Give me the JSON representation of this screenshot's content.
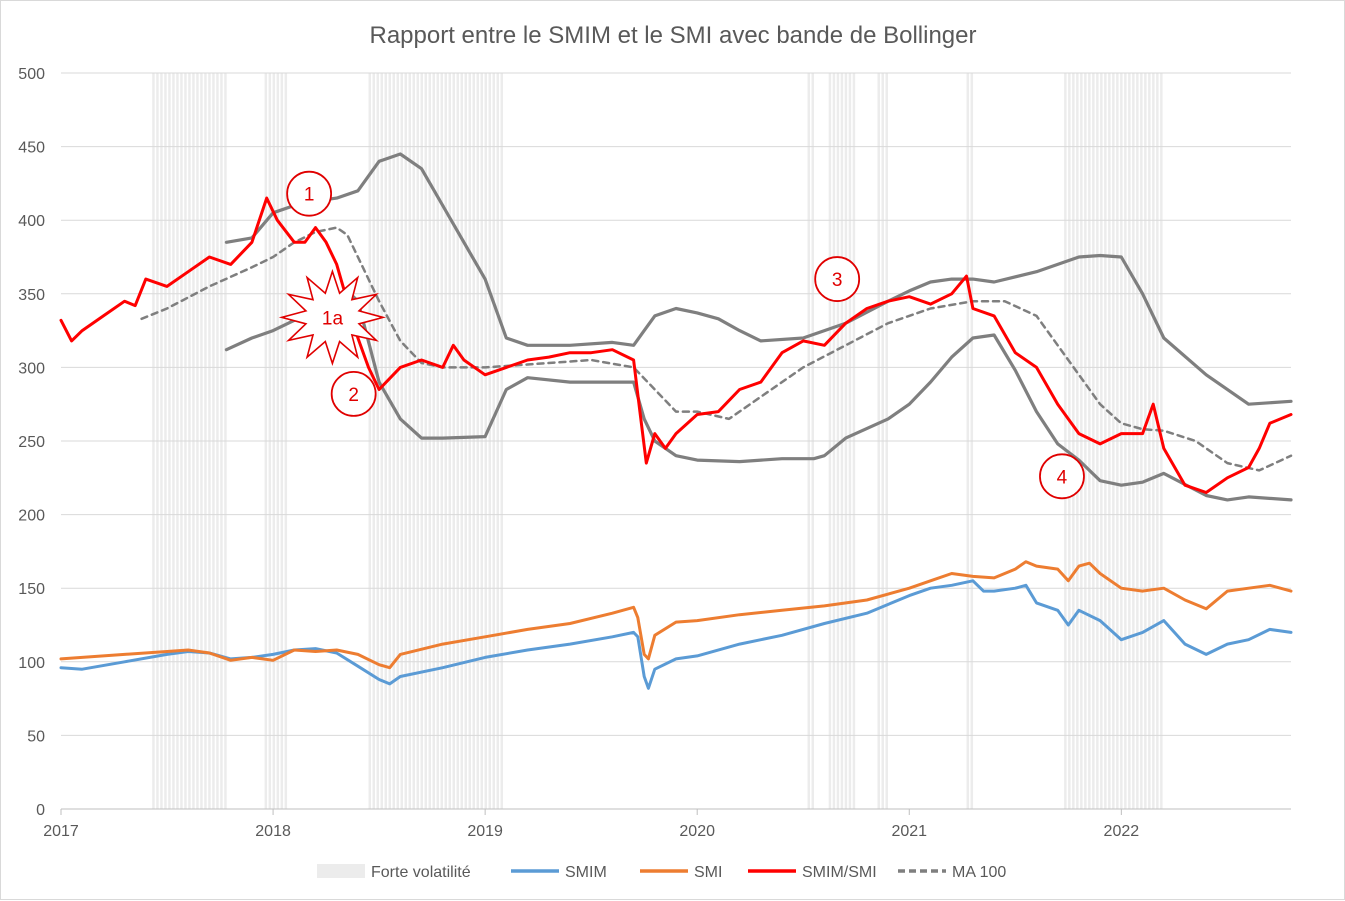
{
  "chart_data": {
    "type": "line",
    "title": "Rapport entre le SMIM et le SMI avec bande de Bollinger",
    "xlim": [
      2017.0,
      2022.8
    ],
    "ylim": [
      0,
      500
    ],
    "y_ticks": [
      0,
      50,
      100,
      150,
      200,
      250,
      300,
      350,
      400,
      450,
      500
    ],
    "x_ticks": [
      {
        "value": 2017,
        "label": "2017"
      },
      {
        "value": 2018,
        "label": "2018"
      },
      {
        "value": 2019,
        "label": "2019"
      },
      {
        "value": 2020,
        "label": "2020"
      },
      {
        "value": 2021,
        "label": "2021"
      },
      {
        "value": 2022,
        "label": "2022"
      }
    ],
    "grid": "horizontal",
    "legend_position": "bottom",
    "colors": {
      "smim": "#5b9bd5",
      "smi": "#ed7d31",
      "ratio": "#ff0000",
      "ma": "#7f7f7f",
      "bands": "#7f7f7f",
      "volatility": "#ececec",
      "grid": "#d9d9d9",
      "annotation": "#e00000"
    },
    "volatility_periods": [
      [
        2017.43,
        2017.78
      ],
      [
        2017.96,
        2018.06
      ],
      [
        2018.45,
        2019.08
      ],
      [
        2020.52,
        2020.55
      ],
      [
        2020.62,
        2020.74
      ],
      [
        2020.85,
        2020.9
      ],
      [
        2021.27,
        2021.3
      ],
      [
        2021.73,
        2022.2
      ]
    ],
    "series": [
      {
        "name": "SMIM/SMI",
        "role": "ratio",
        "x": [
          2017.0,
          2017.05,
          2017.1,
          2017.2,
          2017.3,
          2017.35,
          2017.4,
          2017.5,
          2017.6,
          2017.7,
          2017.8,
          2017.9,
          2017.97,
          2018.02,
          2018.1,
          2018.15,
          2018.2,
          2018.25,
          2018.3,
          2018.35,
          2018.4,
          2018.45,
          2018.5,
          2018.6,
          2018.7,
          2018.8,
          2018.85,
          2018.9,
          2019.0,
          2019.1,
          2019.2,
          2019.3,
          2019.4,
          2019.5,
          2019.6,
          2019.7,
          2019.73,
          2019.76,
          2019.8,
          2019.85,
          2019.9,
          2020.0,
          2020.1,
          2020.2,
          2020.3,
          2020.4,
          2020.5,
          2020.6,
          2020.7,
          2020.8,
          2020.9,
          2021.0,
          2021.1,
          2021.2,
          2021.27,
          2021.3,
          2021.4,
          2021.5,
          2021.6,
          2021.7,
          2021.8,
          2021.9,
          2022.0,
          2022.1,
          2022.15,
          2022.2,
          2022.3,
          2022.4,
          2022.5,
          2022.6,
          2022.65,
          2022.7,
          2022.8
        ],
        "values": [
          332,
          318,
          325,
          335,
          345,
          342,
          360,
          355,
          365,
          375,
          370,
          385,
          415,
          400,
          385,
          385,
          395,
          385,
          370,
          345,
          320,
          300,
          285,
          300,
          305,
          300,
          315,
          305,
          295,
          300,
          305,
          307,
          310,
          310,
          312,
          305,
          270,
          235,
          255,
          245,
          255,
          268,
          270,
          285,
          290,
          310,
          318,
          315,
          330,
          340,
          345,
          348,
          343,
          350,
          362,
          340,
          335,
          310,
          300,
          275,
          255,
          248,
          255,
          255,
          275,
          245,
          220,
          215,
          225,
          232,
          245,
          262,
          268
        ]
      },
      {
        "name": "MA 100",
        "role": "ma",
        "x": [
          2017.38,
          2017.5,
          2017.7,
          2017.9,
          2018.0,
          2018.1,
          2018.2,
          2018.3,
          2018.35,
          2018.4,
          2018.5,
          2018.6,
          2018.7,
          2018.8,
          2019.0,
          2019.2,
          2019.5,
          2019.7,
          2019.8,
          2019.9,
          2020.0,
          2020.15,
          2020.3,
          2020.5,
          2020.7,
          2020.9,
          2021.1,
          2021.3,
          2021.45,
          2021.6,
          2021.75,
          2021.9,
          2022.0,
          2022.1,
          2022.2,
          2022.35,
          2022.5,
          2022.65,
          2022.8
        ],
        "values": [
          333,
          340,
          355,
          368,
          375,
          385,
          392,
          395,
          390,
          375,
          345,
          318,
          303,
          300,
          300,
          302,
          305,
          300,
          285,
          270,
          270,
          265,
          280,
          300,
          315,
          330,
          340,
          345,
          345,
          335,
          305,
          275,
          262,
          258,
          257,
          250,
          235,
          230,
          240
        ]
      },
      {
        "name": "",
        "role": "upper",
        "x": [
          2017.78,
          2017.9,
          2018.0,
          2018.1,
          2018.2,
          2018.3,
          2018.4,
          2018.5,
          2018.6,
          2018.7,
          2018.8,
          2018.9,
          2019.0,
          2019.1,
          2019.2,
          2019.4,
          2019.6,
          2019.7,
          2019.75,
          2019.8,
          2019.9,
          2020.0,
          2020.1,
          2020.2,
          2020.3,
          2020.5,
          2020.7,
          2020.9,
          2021.0,
          2021.1,
          2021.2,
          2021.3,
          2021.4,
          2021.6,
          2021.8,
          2021.9,
          2022.0,
          2022.1,
          2022.2,
          2022.4,
          2022.6,
          2022.8
        ],
        "values": [
          385,
          388,
          405,
          410,
          413,
          415,
          420,
          440,
          445,
          435,
          410,
          385,
          360,
          320,
          315,
          315,
          317,
          315,
          325,
          335,
          340,
          337,
          333,
          325,
          318,
          320,
          330,
          345,
          352,
          358,
          360,
          360,
          358,
          365,
          375,
          376,
          375,
          350,
          320,
          295,
          275,
          277
        ]
      },
      {
        "name": "",
        "role": "lower",
        "x": [
          2017.78,
          2017.9,
          2018.0,
          2018.1,
          2018.2,
          2018.3,
          2018.35,
          2018.4,
          2018.5,
          2018.6,
          2018.7,
          2018.8,
          2019.0,
          2019.1,
          2019.2,
          2019.4,
          2019.6,
          2019.7,
          2019.75,
          2019.8,
          2019.9,
          2020.0,
          2020.2,
          2020.4,
          2020.55,
          2020.6,
          2020.7,
          2020.9,
          2021.0,
          2021.1,
          2021.2,
          2021.3,
          2021.4,
          2021.5,
          2021.6,
          2021.7,
          2021.8,
          2021.9,
          2022.0,
          2022.1,
          2022.2,
          2022.4,
          2022.5,
          2022.6,
          2022.8
        ],
        "values": [
          312,
          320,
          325,
          332,
          340,
          348,
          352,
          345,
          290,
          265,
          252,
          252,
          253,
          285,
          293,
          290,
          290,
          290,
          265,
          250,
          240,
          237,
          236,
          238,
          238,
          240,
          252,
          265,
          275,
          290,
          307,
          320,
          322,
          298,
          270,
          248,
          237,
          223,
          220,
          222,
          228,
          213,
          210,
          212,
          210
        ]
      },
      {
        "name": "SMIM",
        "role": "smim",
        "x": [
          2017.0,
          2017.1,
          2017.3,
          2017.5,
          2017.6,
          2017.7,
          2017.8,
          2017.9,
          2018.0,
          2018.1,
          2018.2,
          2018.3,
          2018.4,
          2018.5,
          2018.55,
          2018.6,
          2018.8,
          2019.0,
          2019.2,
          2019.4,
          2019.6,
          2019.7,
          2019.72,
          2019.75,
          2019.77,
          2019.8,
          2019.9,
          2020.0,
          2020.2,
          2020.4,
          2020.6,
          2020.8,
          2021.0,
          2021.1,
          2021.2,
          2021.3,
          2021.35,
          2021.4,
          2021.5,
          2021.55,
          2021.6,
          2021.7,
          2021.75,
          2021.8,
          2021.9,
          2022.0,
          2022.1,
          2022.2,
          2022.3,
          2022.4,
          2022.5,
          2022.6,
          2022.7,
          2022.8
        ],
        "values": [
          96,
          95,
          100,
          105,
          107,
          106,
          102,
          103,
          105,
          108,
          109,
          106,
          97,
          88,
          85,
          90,
          96,
          103,
          108,
          112,
          117,
          120,
          117,
          90,
          82,
          95,
          102,
          104,
          112,
          118,
          126,
          133,
          145,
          150,
          152,
          155,
          148,
          148,
          150,
          152,
          140,
          135,
          125,
          135,
          128,
          115,
          120,
          128,
          112,
          105,
          112,
          115,
          122,
          120
        ]
      },
      {
        "name": "SMI",
        "role": "smi",
        "x": [
          2017.0,
          2017.1,
          2017.3,
          2017.5,
          2017.6,
          2017.7,
          2017.8,
          2017.9,
          2018.0,
          2018.1,
          2018.2,
          2018.3,
          2018.4,
          2018.5,
          2018.55,
          2018.6,
          2018.8,
          2019.0,
          2019.2,
          2019.4,
          2019.6,
          2019.7,
          2019.72,
          2019.75,
          2019.77,
          2019.8,
          2019.9,
          2020.0,
          2020.2,
          2020.4,
          2020.6,
          2020.8,
          2021.0,
          2021.1,
          2021.2,
          2021.3,
          2021.4,
          2021.5,
          2021.55,
          2021.6,
          2021.7,
          2021.75,
          2021.8,
          2021.85,
          2021.9,
          2022.0,
          2022.1,
          2022.2,
          2022.3,
          2022.4,
          2022.5,
          2022.6,
          2022.7,
          2022.8
        ],
        "values": [
          102,
          103,
          105,
          107,
          108,
          106,
          101,
          103,
          101,
          108,
          107,
          108,
          105,
          98,
          96,
          105,
          112,
          117,
          122,
          126,
          133,
          137,
          130,
          105,
          102,
          118,
          127,
          128,
          132,
          135,
          138,
          142,
          150,
          155,
          160,
          158,
          157,
          163,
          168,
          165,
          163,
          155,
          165,
          167,
          160,
          150,
          148,
          150,
          142,
          136,
          148,
          150,
          152,
          148
        ]
      }
    ],
    "legend": [
      {
        "label": "Forte volatilité",
        "role": "volatility"
      },
      {
        "label": "SMIM",
        "role": "smim"
      },
      {
        "label": "SMI",
        "role": "smi"
      },
      {
        "label": "SMIM/SMI",
        "role": "ratio"
      },
      {
        "label": "MA 100",
        "role": "ma"
      }
    ],
    "annotations": [
      {
        "label": "1",
        "x": 2018.17,
        "y": 418,
        "shape": "circle"
      },
      {
        "label": "1a",
        "x": 2018.28,
        "y": 334,
        "shape": "burst"
      },
      {
        "label": "2",
        "x": 2018.38,
        "y": 282,
        "shape": "circle"
      },
      {
        "label": "3",
        "x": 2020.66,
        "y": 360,
        "shape": "circle"
      },
      {
        "label": "4",
        "x": 2021.72,
        "y": 226,
        "shape": "circle"
      }
    ]
  }
}
